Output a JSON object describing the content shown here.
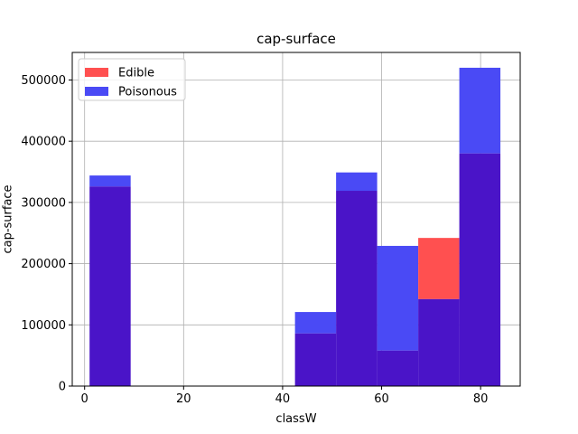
{
  "chart_data": {
    "type": "bar",
    "title": "cap-surface",
    "xlabel": "classW",
    "ylabel": "cap-surface",
    "xlim": [
      -2.5,
      88
    ],
    "ylim": [
      0,
      545000
    ],
    "xticks": [
      0,
      20,
      40,
      60,
      80
    ],
    "yticks": [
      0,
      100000,
      200000,
      300000,
      400000,
      500000
    ],
    "grid": true,
    "legend_position": "top-left",
    "bins": [
      [
        1.0,
        9.3
      ],
      [
        9.3,
        17.6
      ],
      [
        17.6,
        25.9
      ],
      [
        25.9,
        34.2
      ],
      [
        34.2,
        42.5
      ],
      [
        42.5,
        50.8
      ],
      [
        50.8,
        59.1
      ],
      [
        59.1,
        67.4
      ],
      [
        67.4,
        75.7
      ],
      [
        75.7,
        84.0
      ]
    ],
    "series": [
      {
        "name": "Edible",
        "color": "#ff5050",
        "values": [
          326000,
          0,
          0,
          0,
          0,
          86000,
          319000,
          58000,
          242000,
          380000
        ]
      },
      {
        "name": "Poisonous",
        "color": "#4a4af5",
        "values": [
          344000,
          0,
          0,
          0,
          0,
          121000,
          349000,
          229000,
          142000,
          520000
        ]
      }
    ],
    "overlap_color": "#4a14c8"
  }
}
